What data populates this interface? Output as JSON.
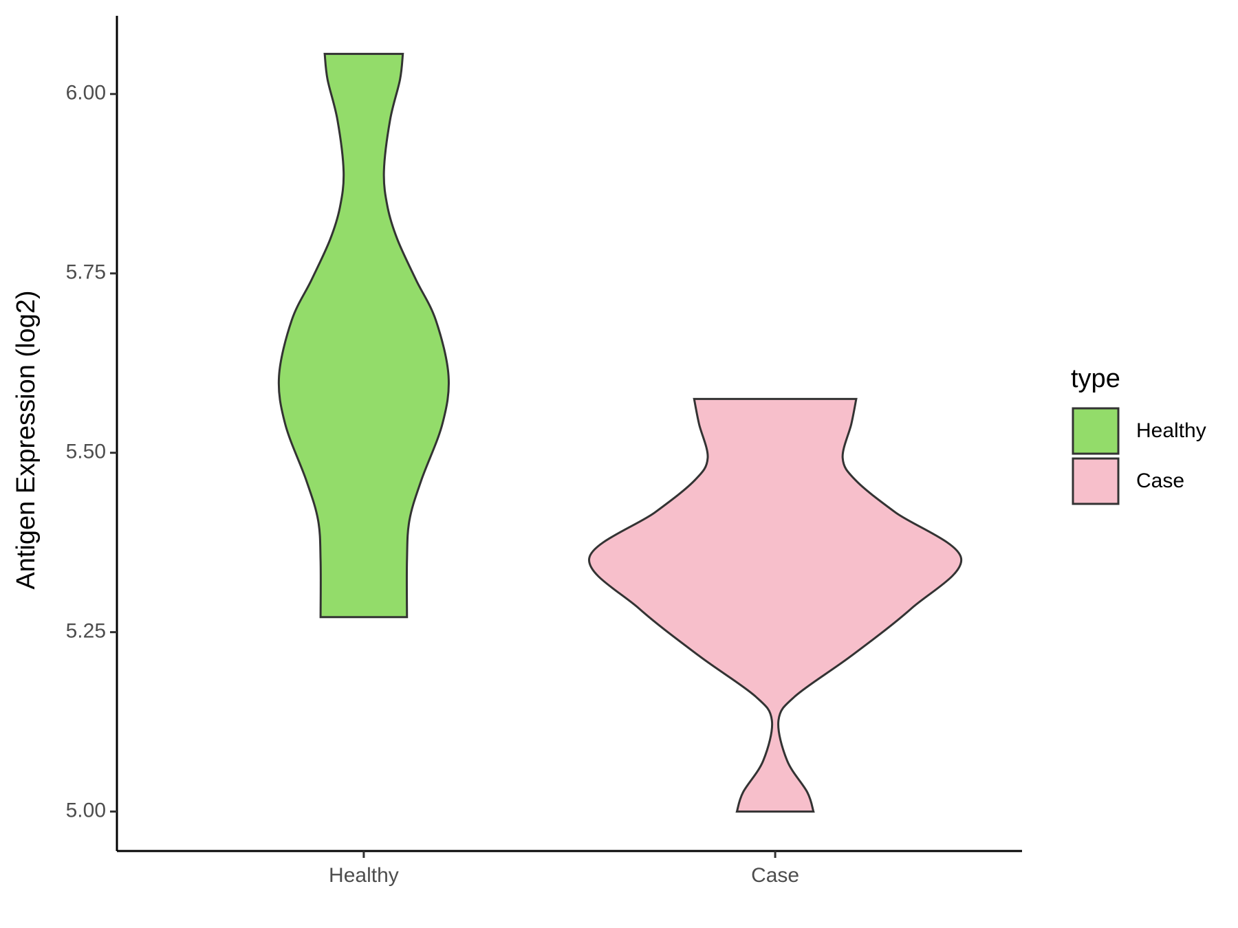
{
  "chart_data": {
    "type": "violin",
    "ylabel": "Antigen Expression (log2)",
    "categories": [
      "Healthy",
      "Case"
    ],
    "legend_title": "type",
    "legend": "right",
    "ylim": [
      4.945,
      6.109
    ],
    "yticks": [
      {
        "value": 5,
        "label": "5.00"
      },
      {
        "value": 5.25,
        "label": "5.25"
      },
      {
        "value": 5.5,
        "label": "5.50"
      },
      {
        "value": 5.75,
        "label": "5.75"
      },
      {
        "value": 6,
        "label": "6.00"
      }
    ],
    "series": [
      {
        "name": "Healthy",
        "color": "#93dc6a",
        "y": [
          6.056,
          6.02,
          5.964,
          5.892,
          5.842,
          5.797,
          5.741,
          5.685,
          5.607,
          5.54,
          5.462,
          5.406,
          5.35,
          5.271
        ],
        "width": [
          0.095,
          0.088,
          0.064,
          0.049,
          0.058,
          0.082,
          0.127,
          0.175,
          0.206,
          0.191,
          0.14,
          0.111,
          0.105,
          0.105
        ]
      },
      {
        "name": "Case",
        "color": "#f7bfcb",
        "y": [
          5.575,
          5.54,
          5.493,
          5.462,
          5.417,
          5.353,
          5.283,
          5.217,
          5.161,
          5.127,
          5.071,
          5.027,
          5.0
        ],
        "width": [
          0.197,
          0.185,
          0.164,
          0.195,
          0.292,
          0.452,
          0.331,
          0.185,
          0.049,
          0.008,
          0.029,
          0.078,
          0.093
        ]
      }
    ]
  }
}
